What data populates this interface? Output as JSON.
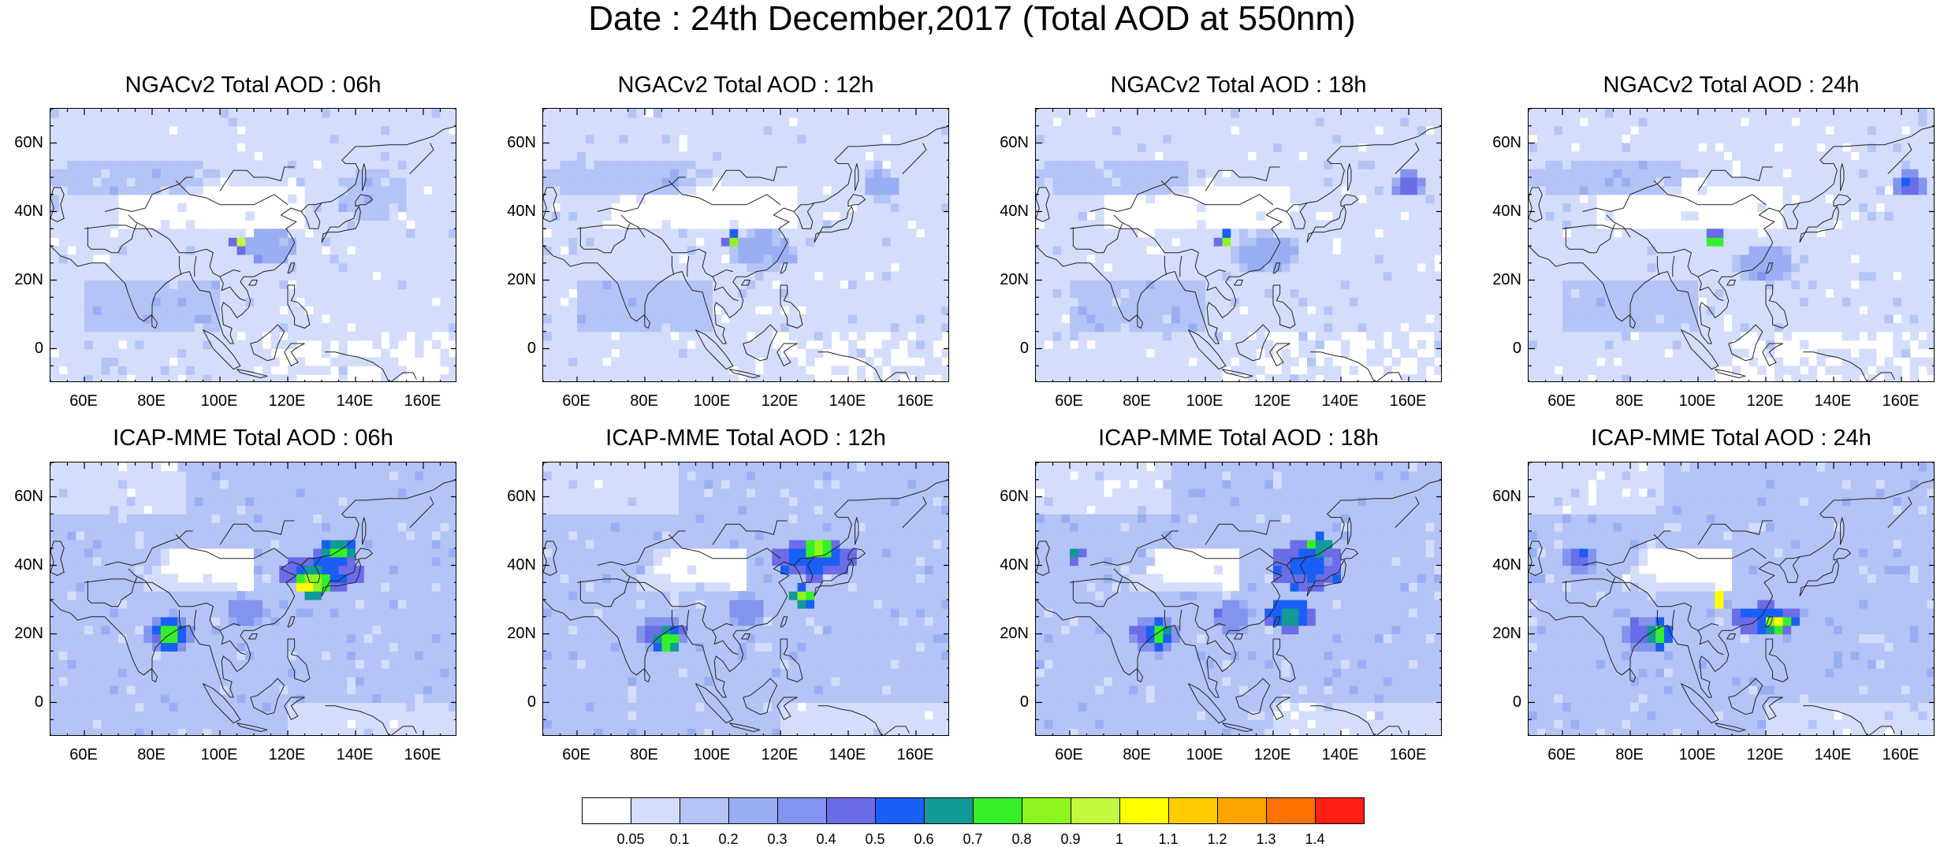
{
  "title": "Date : 24th December,2017 (Total AOD at 550nm)",
  "map": {
    "lon_range": [
      50,
      170
    ],
    "lat_range": [
      -10,
      70
    ],
    "lat_ticks": [
      "60N",
      "40N",
      "20N",
      "0"
    ],
    "lon_ticks": [
      "60E",
      "80E",
      "100E",
      "120E",
      "140E",
      "160E"
    ]
  },
  "panels": [
    {
      "title": "NGACv2 Total AOD : 06h",
      "model": "NGACv2",
      "hour": "06h"
    },
    {
      "title": "NGACv2 Total AOD : 12h",
      "model": "NGACv2",
      "hour": "12h"
    },
    {
      "title": "NGACv2 Total AOD : 18h",
      "model": "NGACv2",
      "hour": "18h"
    },
    {
      "title": "NGACv2 Total AOD : 24h",
      "model": "NGACv2",
      "hour": "24h"
    },
    {
      "title": "ICAP-MME Total AOD : 06h",
      "model": "ICAP-MME",
      "hour": "06h"
    },
    {
      "title": "ICAP-MME Total AOD : 12h",
      "model": "ICAP-MME",
      "hour": "12h"
    },
    {
      "title": "ICAP-MME Total AOD : 18h",
      "model": "ICAP-MME",
      "hour": "18h"
    },
    {
      "title": "ICAP-MME Total AOD : 24h",
      "model": "ICAP-MME",
      "hour": "24h"
    }
  ],
  "colorbar": {
    "labels": [
      "0.05",
      "0.1",
      "0.2",
      "0.3",
      "0.4",
      "0.5",
      "0.6",
      "0.7",
      "0.8",
      "0.9",
      "1",
      "1.1",
      "1.2",
      "1.3",
      "1.4"
    ],
    "colors": [
      "#ffffff",
      "#d4ddfb",
      "#b4c4f6",
      "#9aaff3",
      "#8394ee",
      "#6b6ce8",
      "#1a5ff5",
      "#119a98",
      "#35ef2b",
      "#8ef51f",
      "#c3f83d",
      "#ffff00",
      "#ffcc00",
      "#ffa500",
      "#ff7200",
      "#ff1e14"
    ]
  }
}
